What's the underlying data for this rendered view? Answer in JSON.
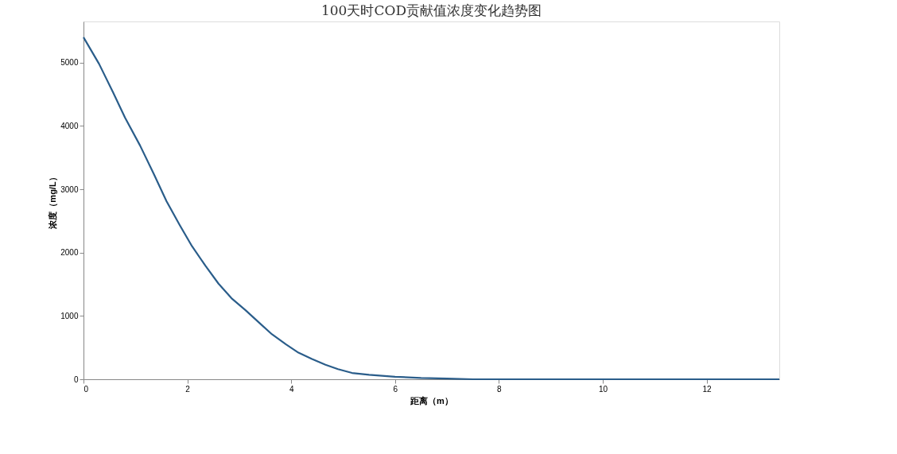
{
  "chart_data": {
    "type": "line",
    "title": "100天时COD贡献值浓度变化趋势图",
    "xlabel": "距离（m）",
    "ylabel": "浓度（mg/L）",
    "x": [
      0,
      0.3,
      0.57,
      0.8,
      1.09,
      1.35,
      1.6,
      1.85,
      2.09,
      2.35,
      2.6,
      2.85,
      3.12,
      3.4,
      3.63,
      3.9,
      4.14,
      4.4,
      4.66,
      4.9,
      5.17,
      5.5,
      6,
      6.5,
      7,
      7.5,
      8,
      9,
      10,
      11,
      12,
      13.4
    ],
    "series": [
      {
        "color": "#2a5d8a",
        "values": [
          5400,
          4980,
          4530,
          4130,
          3690,
          3250,
          2810,
          2440,
          2100,
          1790,
          1510,
          1280,
          1090,
          880,
          710,
          550,
          420,
          320,
          230,
          160,
          100,
          70,
          40,
          20,
          10,
          0,
          0,
          0,
          0,
          0,
          0,
          0
        ]
      }
    ],
    "xlim": [
      0,
      13.4
    ],
    "ylim": [
      0,
      5650
    ],
    "xticks": [
      0,
      2,
      4,
      6,
      8,
      10,
      12
    ],
    "yticks": [
      0,
      1000,
      2000,
      3000,
      4000,
      5000
    ],
    "grid": false,
    "marker": "none",
    "line_style": "solid"
  }
}
